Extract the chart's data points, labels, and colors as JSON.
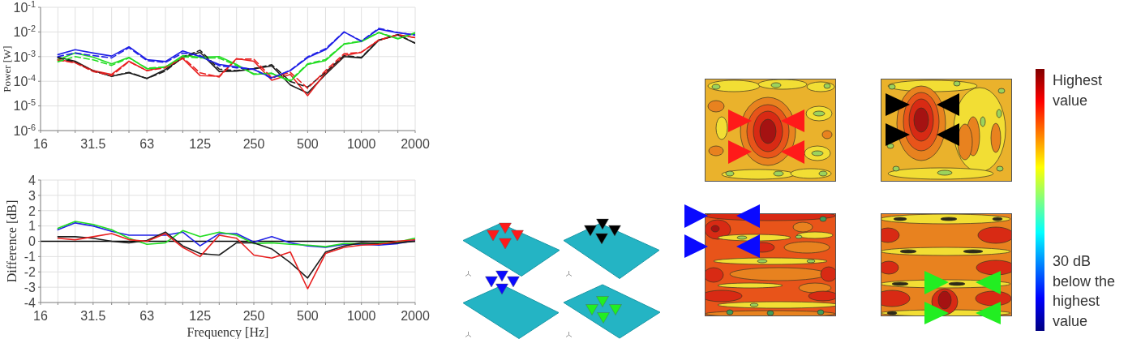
{
  "chart_data": [
    {
      "type": "line",
      "ylabel": "Power [W]",
      "x": [
        20,
        25,
        31.5,
        40,
        50,
        63,
        80,
        100,
        125,
        160,
        200,
        250,
        315,
        400,
        500,
        630,
        800,
        1000,
        1250,
        1600,
        2000
      ],
      "xlim": [
        16,
        2000
      ],
      "ylim": [
        1e-06,
        0.1
      ],
      "xticks": [
        16,
        {
          "value": 20,
          "label": null
        },
        {
          "value": 25,
          "label": null
        },
        31.5,
        {
          "value": 40,
          "label": null
        },
        {
          "value": 50,
          "label": null
        },
        63,
        {
          "value": 80,
          "label": null
        },
        {
          "value": 100,
          "label": null
        },
        125,
        {
          "value": 160,
          "label": null
        },
        {
          "value": 200,
          "label": null
        },
        250,
        {
          "value": 315,
          "label": null
        },
        {
          "value": 400,
          "label": null
        },
        500,
        {
          "value": 630,
          "label": null
        },
        {
          "value": 800,
          "label": null
        },
        1000,
        {
          "value": 1250,
          "label": null
        },
        {
          "value": 1600,
          "label": null
        },
        2000
      ],
      "yticks": [
        {
          "value": 1e-06,
          "label": "10$^{-6}$"
        },
        {
          "value": 1e-05,
          "label": "10$^{-5}$"
        },
        {
          "value": 0.0001,
          "label": "10$^{-4}$"
        },
        {
          "value": 0.001,
          "label": "10$^{-3}$"
        },
        {
          "value": 0.01,
          "label": "10$^{-2}$"
        },
        {
          "value": 0.1,
          "label": "10$^{-1}$"
        }
      ],
      "log": "xy",
      "grid": true,
      "line_style": "solid",
      "series": [
        {
          "color": "#1e1e1e",
          "values": [
            0.00095,
            0.00065,
            0.00027,
            0.00016,
            0.00022,
            0.00013,
            0.0003,
            0.00089,
            0.0015,
            0.00025,
            0.00026,
            0.00032,
            0.00042,
            7.1e-05,
            3.3e-05,
            0.00019,
            0.001,
            0.00089,
            0.0046,
            0.0076,
            0.0035
          ]
        },
        {
          "color": "#e82020",
          "values": [
            0.00076,
            0.00058,
            0.00027,
            0.00019,
            0.00065,
            0.00027,
            0.00039,
            0.00083,
            0.00017,
            0.00016,
            0.00083,
            0.00065,
            0.00011,
            0.00019,
            2.6e-05,
            0.00022,
            0.0011,
            0.0015,
            0.0046,
            0.0076,
            0.0059
          ]
        },
        {
          "color": "#22dd22",
          "values": [
            0.00074,
            0.0014,
            0.00095,
            0.00051,
            0.00093,
            0.00032,
            0.00037,
            0.0011,
            0.00095,
            0.001,
            0.00048,
            0.00019,
            0.00021,
            0.0001,
            0.00048,
            0.00069,
            0.0032,
            0.0041,
            0.0093,
            0.0052,
            0.0093
          ]
        },
        {
          "color": "#2020e6",
          "values": [
            0.0012,
            0.0019,
            0.0014,
            0.00105,
            0.0025,
            0.00076,
            0.00063,
            0.0017,
            0.001,
            0.00048,
            0.00039,
            0.0003,
            0.00014,
            0.00027,
            0.00091,
            0.0019,
            0.01,
            0.0041,
            0.013,
            0.0093,
            0.0076
          ]
        },
        {
          "color": "#1e1e1e",
          "line_style": "dashed",
          "values": [
            0.00089,
            0.0006,
            0.00026,
            0.00016,
            0.00023,
            0.00013,
            0.00026,
            0.00095,
            0.0018,
            0.00031,
            0.00027,
            0.00033,
            0.00047,
            9.8e-05,
            5.8e-05,
            0.00023,
            0.0011,
            0.00093,
            0.0047,
            0.0078,
            0.0035
          ]
        },
        {
          "color": "#e82020",
          "line_style": "dashed",
          "values": [
            0.00072,
            0.00056,
            0.00025,
            0.00017,
            0.00063,
            0.00027,
            0.00035,
            0.00091,
            0.00022,
            0.00015,
            0.00079,
            0.00079,
            0.00014,
            0.00023,
            5.2e-05,
            0.00027,
            0.0013,
            0.0015,
            0.0047,
            0.0078,
            0.0058
          ]
        },
        {
          "color": "#22dd22",
          "line_style": "dashed",
          "values": [
            0.00062,
            0.001,
            0.00074,
            0.00044,
            0.00089,
            0.00034,
            0.00038,
            0.00098,
            0.00089,
            0.00087,
            0.00044,
            0.0002,
            0.00021,
            0.00011,
            0.00051,
            0.00076,
            0.0033,
            0.0043,
            0.0095,
            0.0054,
            0.0089
          ]
        },
        {
          "color": "#2020e6",
          "line_style": "dashed",
          "values": [
            0.001,
            0.0014,
            0.0011,
            0.00089,
            0.0023,
            0.00069,
            0.00058,
            0.0014,
            0.0011,
            0.00043,
            0.00035,
            0.00031,
            0.00013,
            0.00028,
            0.00098,
            0.0021,
            0.01,
            0.0043,
            0.014,
            0.0095,
            0.0074
          ]
        }
      ]
    },
    {
      "type": "line",
      "xlabel": "Frequency [Hz]",
      "ylabel": "Difference [dB]",
      "x": [
        20,
        25,
        31.5,
        40,
        50,
        63,
        80,
        100,
        125,
        160,
        200,
        250,
        315,
        400,
        500,
        630,
        800,
        1000,
        1250,
        1600,
        2000
      ],
      "xlim": [
        16,
        2000
      ],
      "ylim": [
        -4,
        4
      ],
      "xticks": [
        16,
        {
          "value": 20,
          "label": null
        },
        {
          "value": 25,
          "label": null
        },
        31.5,
        {
          "value": 40,
          "label": null
        },
        {
          "value": 50,
          "label": null
        },
        63,
        {
          "value": 80,
          "label": null
        },
        {
          "value": 100,
          "label": null
        },
        125,
        {
          "value": 160,
          "label": null
        },
        {
          "value": 200,
          "label": null
        },
        250,
        {
          "value": 315,
          "label": null
        },
        {
          "value": 400,
          "label": null
        },
        500,
        {
          "value": 630,
          "label": null
        },
        {
          "value": 800,
          "label": null
        },
        1000,
        {
          "value": 1250,
          "label": null
        },
        {
          "value": 1600,
          "label": null
        },
        2000
      ],
      "yticks": [
        -4,
        -3,
        -2,
        -1,
        0,
        1,
        2,
        3,
        4
      ],
      "log": "x",
      "grid": true,
      "line_style": "solid",
      "ref_lines": [
        {
          "axis": "y",
          "value": 0,
          "color": "#000000"
        }
      ],
      "series": [
        {
          "color": "#2020e6",
          "values": [
            0.75,
            1.2,
            1.0,
            0.65,
            0.4,
            0.4,
            0.4,
            0.6,
            -0.3,
            0.5,
            0.5,
            -0.05,
            0.3,
            -0.1,
            -0.3,
            -0.4,
            -0.2,
            -0.2,
            -0.25,
            -0.15,
            0.05
          ]
        },
        {
          "color": "#22dd22",
          "values": [
            0.85,
            1.3,
            1.1,
            0.75,
            0.2,
            -0.2,
            -0.1,
            0.7,
            0.3,
            0.6,
            0.4,
            -0.15,
            -0.1,
            -0.2,
            -0.25,
            -0.35,
            -0.15,
            -0.15,
            -0.1,
            -0.05,
            0.2
          ]
        },
        {
          "color": "#1e1e1e",
          "values": [
            0.3,
            0.3,
            0.2,
            0.0,
            -0.1,
            0.05,
            0.6,
            -0.3,
            -0.8,
            -0.9,
            -0.1,
            -0.1,
            -0.5,
            -1.4,
            -2.4,
            -0.7,
            -0.3,
            -0.1,
            -0.15,
            -0.1,
            0.0
          ]
        },
        {
          "color": "#e82020",
          "values": [
            0.2,
            0.1,
            0.3,
            0.5,
            0.1,
            0.0,
            0.5,
            -0.4,
            -1.0,
            0.4,
            0.2,
            -0.9,
            -1.1,
            -0.7,
            -3.1,
            -0.8,
            -0.4,
            -0.25,
            -0.2,
            0.0,
            0.1
          ]
        }
      ]
    },
    {
      "type": "other",
      "annotations": [
        "Highest value",
        "30 dB below the highest value"
      ]
    }
  ]
}
